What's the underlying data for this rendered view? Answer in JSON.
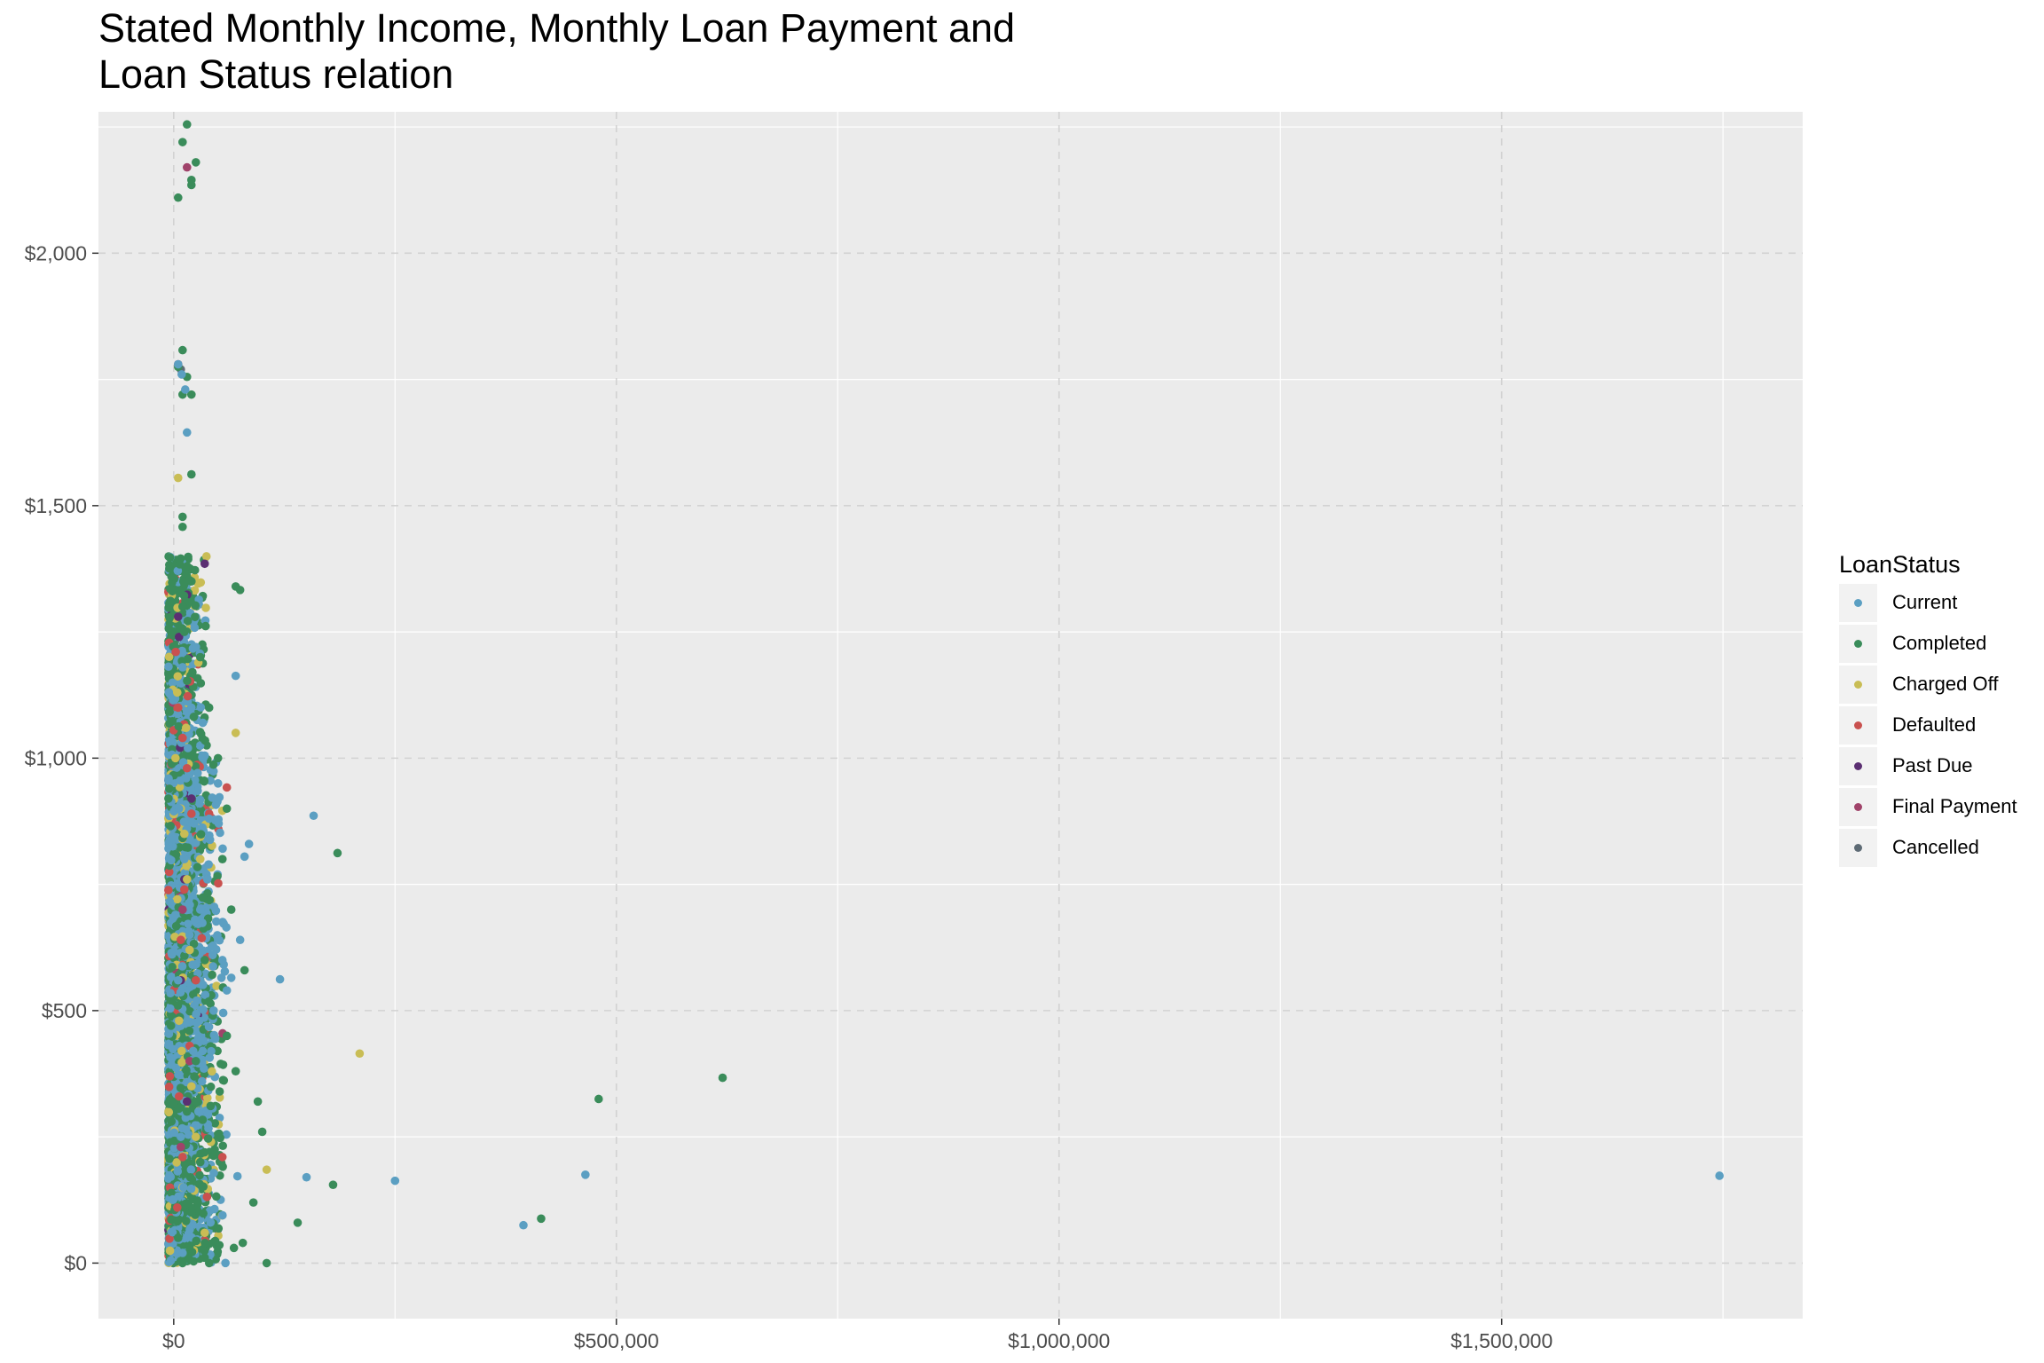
{
  "chart_data": {
    "type": "scatter",
    "title": "Stated Monthly Income, Monthly Loan Payment and\nLoan Status relation",
    "title_lines": [
      "Stated Monthly Income, Monthly Loan Payment and",
      "Loan Status relation"
    ],
    "xlabel": "",
    "ylabel": "",
    "xlim": [
      -85000,
      1840000
    ],
    "ylim": [
      -110,
      2280
    ],
    "x_ticks": [
      0,
      500000,
      1000000,
      1500000
    ],
    "x_tick_labels": [
      "$0",
      "$500,000",
      "$1,000,000",
      "$1,500,000"
    ],
    "y_ticks": [
      0,
      500,
      1000,
      1500,
      2000
    ],
    "y_tick_labels": [
      "$0",
      "$500",
      "$1,000",
      "$1,500",
      "$2,000"
    ],
    "grid": true,
    "legend": {
      "title": "LoanStatus",
      "placement": "right",
      "entries": [
        {
          "name": "Current",
          "color": "#5b9fc2"
        },
        {
          "name": "Completed",
          "color": "#3a8c5a"
        },
        {
          "name": "Charged Off",
          "color": "#c9bd55"
        },
        {
          "name": "Defaulted",
          "color": "#c9514f"
        },
        {
          "name": "Past Due",
          "color": "#5b2f72"
        },
        {
          "name": "Final Payment",
          "color": "#a0436a"
        },
        {
          "name": "Cancelled",
          "color": "#5e6b75"
        }
      ]
    },
    "series": [
      {
        "name": "Current",
        "color": "#5b9fc2",
        "points": [
          [
            1746000,
            173
          ],
          [
            465000,
            175
          ],
          [
            395000,
            75
          ],
          [
            250000,
            163
          ],
          [
            150000,
            170
          ],
          [
            158000,
            886
          ],
          [
            120000,
            562
          ],
          [
            70000,
            1163
          ],
          [
            85000,
            830
          ],
          [
            80000,
            805
          ],
          [
            75000,
            640
          ],
          [
            65000,
            565
          ],
          [
            60000,
            540
          ],
          [
            72000,
            172
          ],
          [
            25000,
            1220
          ],
          [
            15000,
            1645
          ],
          [
            35000,
            1005
          ],
          [
            50000,
            950
          ],
          [
            40000,
            880
          ],
          [
            55000,
            600
          ],
          [
            45000,
            500
          ],
          [
            30000,
            700
          ],
          [
            20000,
            1100
          ],
          [
            10000,
            1180
          ],
          [
            12000,
            800
          ],
          [
            18000,
            650
          ],
          [
            22000,
            420
          ],
          [
            28000,
            300
          ],
          [
            8000,
            250
          ],
          [
            5000,
            560
          ],
          [
            14000,
            960
          ],
          [
            32000,
            360
          ],
          [
            38000,
            760
          ],
          [
            26000,
            520
          ],
          [
            6000,
            900
          ],
          [
            16000,
            1020
          ],
          [
            24000,
            680
          ],
          [
            34000,
            440
          ],
          [
            44000,
            610
          ],
          [
            11000,
            150
          ],
          [
            9000,
            1760
          ],
          [
            13000,
            1730
          ],
          [
            5000,
            1780
          ]
        ]
      },
      {
        "name": "Completed",
        "color": "#3a8c5a",
        "points": [
          [
            620000,
            367
          ],
          [
            480000,
            325
          ],
          [
            415000,
            88
          ],
          [
            185000,
            812
          ],
          [
            180000,
            155
          ],
          [
            140000,
            80
          ],
          [
            105000,
            0
          ],
          [
            100000,
            260
          ],
          [
            95000,
            320
          ],
          [
            90000,
            120
          ],
          [
            80000,
            580
          ],
          [
            75000,
            1333
          ],
          [
            70000,
            1340
          ],
          [
            78000,
            40
          ],
          [
            68000,
            30
          ],
          [
            15000,
            2255
          ],
          [
            10000,
            2220
          ],
          [
            25000,
            2180
          ],
          [
            20000,
            2145
          ],
          [
            20000,
            2135
          ],
          [
            5000,
            2110
          ],
          [
            10000,
            1808
          ],
          [
            15000,
            1755
          ],
          [
            20000,
            1720
          ],
          [
            10000,
            1720
          ],
          [
            5000,
            1775
          ],
          [
            20000,
            1562
          ],
          [
            10000,
            1478
          ],
          [
            10000,
            1458
          ],
          [
            15000,
            1380
          ],
          [
            20000,
            1350
          ],
          [
            10000,
            1300
          ],
          [
            30000,
            1200
          ],
          [
            40000,
            1100
          ],
          [
            50000,
            1000
          ],
          [
            60000,
            900
          ],
          [
            55000,
            800
          ],
          [
            65000,
            700
          ],
          [
            35000,
            600
          ],
          [
            45000,
            500
          ],
          [
            25000,
            400
          ],
          [
            15000,
            300
          ],
          [
            30000,
            200
          ],
          [
            20000,
            100
          ],
          [
            10000,
            0
          ],
          [
            5000,
            50
          ],
          [
            40000,
            0
          ],
          [
            60000,
            450
          ],
          [
            70000,
            380
          ],
          [
            12000,
            1250
          ]
        ]
      },
      {
        "name": "Charged Off",
        "color": "#c9bd55",
        "points": [
          [
            210000,
            415
          ],
          [
            105000,
            185
          ],
          [
            70000,
            1050
          ],
          [
            5000,
            1555
          ],
          [
            2000,
            1000
          ],
          [
            8000,
            900
          ],
          [
            12000,
            850
          ],
          [
            15000,
            760
          ],
          [
            18000,
            620
          ],
          [
            6000,
            480
          ],
          [
            20000,
            350
          ],
          [
            25000,
            250
          ],
          [
            10000,
            150
          ],
          [
            35000,
            60
          ],
          [
            4000,
            1130
          ],
          [
            14000,
            1060
          ],
          [
            30000,
            800
          ],
          [
            9000,
            420
          ]
        ]
      },
      {
        "name": "Defaulted",
        "color": "#c9514f",
        "points": [
          [
            60000,
            942
          ],
          [
            55000,
            210
          ],
          [
            5000,
            1100
          ],
          [
            10000,
            1040
          ],
          [
            15000,
            980
          ],
          [
            20000,
            890
          ],
          [
            12000,
            740
          ],
          [
            8000,
            640
          ],
          [
            18000,
            430
          ],
          [
            6000,
            330
          ],
          [
            10000,
            210
          ],
          [
            4000,
            110
          ],
          [
            25000,
            560
          ],
          [
            40000,
            890
          ]
        ]
      },
      {
        "name": "Past Due",
        "color": "#5b2f72",
        "points": [
          [
            35000,
            1385
          ],
          [
            5000,
            1280
          ],
          [
            20000,
            920
          ],
          [
            12000,
            760
          ],
          [
            8000,
            560
          ],
          [
            15000,
            320
          ],
          [
            6000,
            1240
          ]
        ]
      },
      {
        "name": "Final Payment",
        "color": "#a0436a",
        "points": [
          [
            15000,
            2170
          ],
          [
            5000,
            1780
          ],
          [
            10000,
            700
          ],
          [
            18000,
            400
          ],
          [
            8000,
            230
          ]
        ]
      },
      {
        "name": "Cancelled",
        "color": "#5e6b75",
        "points": [
          [
            8000,
            1770
          ]
        ]
      }
    ]
  }
}
